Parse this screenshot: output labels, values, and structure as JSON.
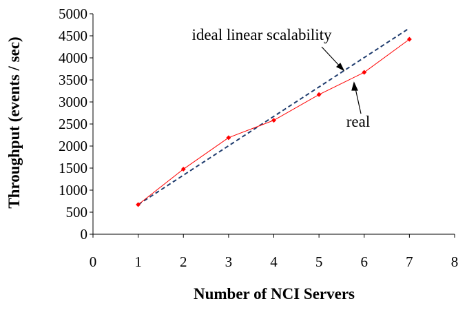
{
  "chart_data": {
    "type": "line",
    "title": "",
    "xlabel": "Number of NCI Servers",
    "ylabel": "Throughput  (events / sec)",
    "xlim": [
      0,
      8
    ],
    "ylim": [
      0,
      5000
    ],
    "xticks": [
      0,
      1,
      2,
      3,
      4,
      5,
      6,
      7,
      8
    ],
    "yticks": [
      0,
      500,
      1000,
      1500,
      2000,
      2500,
      3000,
      3500,
      4000,
      4500,
      5000
    ],
    "grid": false,
    "x": [
      1,
      2,
      3,
      4,
      5,
      6,
      7
    ],
    "series": [
      {
        "name": "real",
        "values": [
          672,
          1476,
          2190,
          2584,
          3167,
          3671,
          4422
        ],
        "color": "#ff0000",
        "style": "solid-markers"
      },
      {
        "name": "ideal linear scalability",
        "values": [
          672,
          1339,
          2006,
          2673,
          3340,
          4007,
          4674
        ],
        "color": "#1f3c6e",
        "style": "dashed"
      }
    ],
    "annotations": [
      "ideal linear scalability",
      "real"
    ]
  }
}
